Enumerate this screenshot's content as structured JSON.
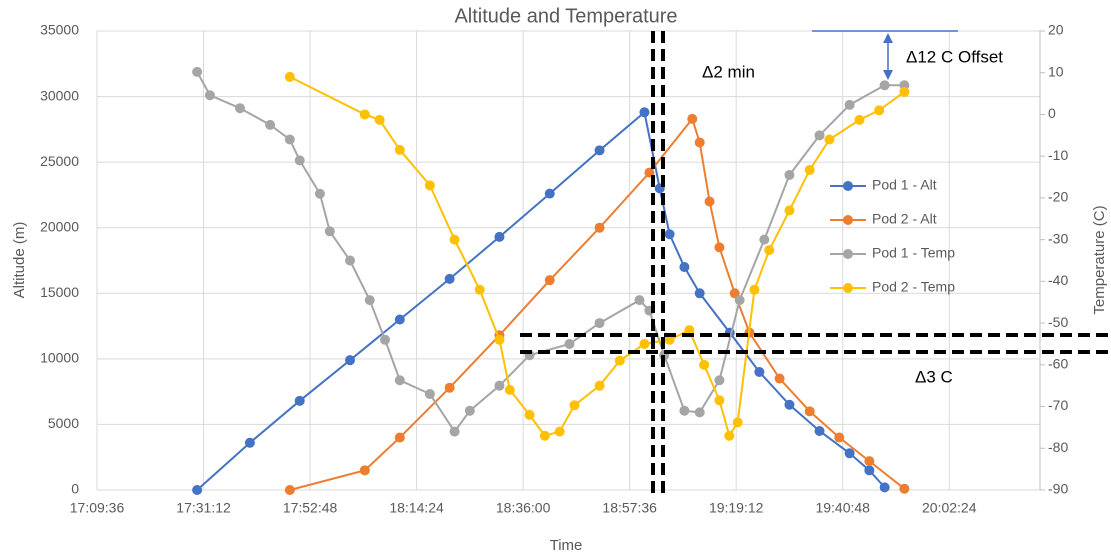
{
  "chart_data": {
    "type": "line",
    "title": "Altitude and Temperature",
    "x_label": "Time",
    "y_label": "Altitude (m)",
    "y2_label": "Temperature (C)",
    "xlim": [
      1029.6,
      1220.8
    ],
    "xticks": [
      {
        "value": 1029.6,
        "label": "17:09:36"
      },
      {
        "value": 1051.2,
        "label": "17:31:12"
      },
      {
        "value": 1072.8,
        "label": "17:52:48"
      },
      {
        "value": 1094.4,
        "label": "18:14:24"
      },
      {
        "value": 1116.0,
        "label": "18:36:00"
      },
      {
        "value": 1137.6,
        "label": "18:57:36"
      },
      {
        "value": 1159.2,
        "label": "19:19:12"
      },
      {
        "value": 1180.8,
        "label": "19:40:48"
      },
      {
        "value": 1202.4,
        "label": "20:02:24"
      }
    ],
    "ylim": [
      0,
      35000
    ],
    "yticks": [
      0,
      5000,
      10000,
      15000,
      20000,
      25000,
      30000,
      35000
    ],
    "y2lim": [
      -90,
      20
    ],
    "y2ticks": [
      -90,
      -80,
      -70,
      -60,
      -50,
      -40,
      -30,
      -20,
      -10,
      0,
      10,
      20
    ],
    "grid": true,
    "legend": "right",
    "series": [
      {
        "name": "Pod 1 - Alt",
        "color": "#4472c4",
        "x": [
          1049.9,
          1060.6,
          1070.7,
          1080.9,
          1091.0,
          1101.1,
          1111.2,
          1121.4,
          1131.5,
          1140.6,
          1143.7,
          1145.7,
          1148.7,
          1151.8,
          1157.9,
          1163.9,
          1170.0,
          1176.1,
          1182.2,
          1186.2,
          1189.3
        ],
        "values": [
          0,
          3600,
          6800,
          9900,
          13000,
          16100,
          19300,
          22600,
          25900,
          28800,
          23000,
          19500,
          17000,
          15000,
          12000,
          9000,
          6500,
          4500,
          2800,
          1500,
          200
        ]
      },
      {
        "name": "Pod 2 - Alt",
        "color": "#ed7d31",
        "x": [
          1068.7,
          1083.9,
          1091.0,
          1101.1,
          1111.2,
          1121.4,
          1131.5,
          1141.6,
          1150.3,
          1151.8,
          1153.8,
          1155.8,
          1158.9,
          1161.9,
          1168.0,
          1174.1,
          1180.1,
          1186.2,
          1193.3
        ],
        "values": [
          0,
          1500,
          4000,
          7800,
          11800,
          16000,
          20000,
          24200,
          28300,
          26500,
          22000,
          18500,
          15000,
          12000,
          8500,
          6000,
          4000,
          2200,
          100
        ]
      },
      {
        "name": "Pod 1 - Temp",
        "color": "#a5a5a5",
        "axis": "y2",
        "x": [
          1049.9,
          1052.5,
          1058.6,
          1064.7,
          1068.7,
          1070.7,
          1074.8,
          1076.8,
          1080.9,
          1084.9,
          1088.0,
          1091.0,
          1097.1,
          1102.1,
          1105.2,
          1111.2,
          1117.3,
          1125.4,
          1131.5,
          1139.6,
          1141.6,
          1144.6,
          1148.7,
          1151.8,
          1155.8,
          1159.9,
          1164.9,
          1170.0,
          1176.1,
          1182.2,
          1189.3,
          1193.3
        ],
        "values": [
          10.2,
          4.6,
          1.5,
          -2.5,
          -6,
          -11,
          -19,
          -28,
          -35,
          -44.5,
          -54,
          -63.7,
          -67,
          -76,
          -71,
          -65,
          -57.7,
          -55,
          -50,
          -44.5,
          -47,
          -57.7,
          -71,
          -71.4,
          -63.7,
          -44.5,
          -30,
          -14.5,
          -5,
          2.3,
          7,
          7
        ]
      },
      {
        "name": "Pod 2 - Temp",
        "color": "#ffc000",
        "axis": "y2",
        "x": [
          1068.7,
          1083.9,
          1086.9,
          1091.0,
          1097.1,
          1102.1,
          1107.2,
          1111.2,
          1113.3,
          1117.3,
          1120.4,
          1123.4,
          1126.4,
          1131.5,
          1135.6,
          1140.6,
          1145.7,
          1149.7,
          1152.7,
          1155.8,
          1157.8,
          1159.5,
          1162.9,
          1165.9,
          1170.0,
          1174.1,
          1178.1,
          1184.2,
          1188.2,
          1193.3
        ],
        "values": [
          9,
          0,
          -1.3,
          -8.5,
          -17,
          -30,
          -42,
          -54,
          -66,
          -72,
          -77,
          -76,
          -69.7,
          -65,
          -59,
          -55,
          -54,
          -51.7,
          -60,
          -68.5,
          -77,
          -73.8,
          -42,
          -32.5,
          -23,
          -13.3,
          -6,
          -1.3,
          1,
          5.4
        ]
      }
    ],
    "annotations": [
      "Δ2 min",
      "Δ12 C Offset",
      "Δ3 C"
    ]
  }
}
